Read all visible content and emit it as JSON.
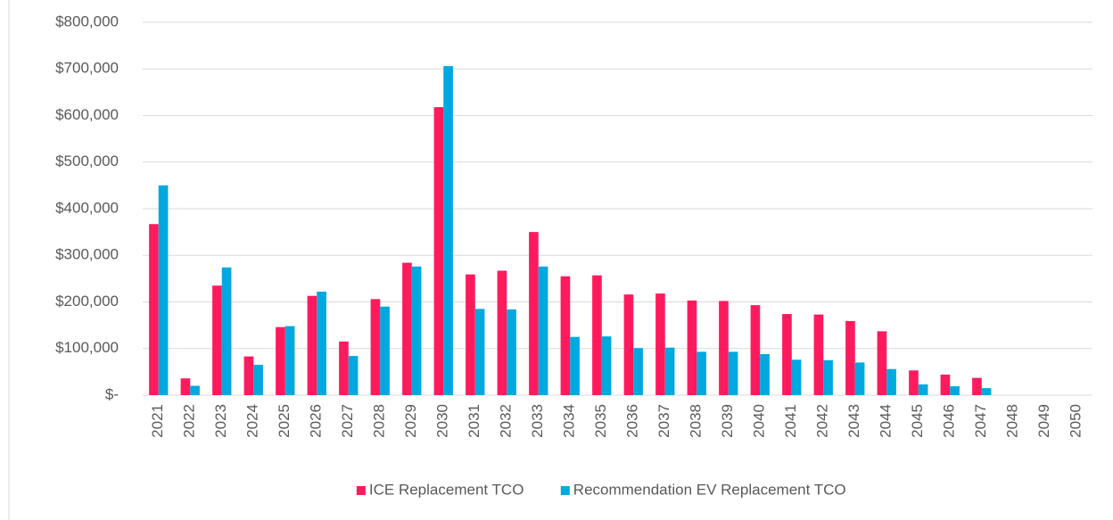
{
  "chart_data": {
    "type": "bar",
    "categories": [
      "2021",
      "2022",
      "2023",
      "2024",
      "2025",
      "2026",
      "2027",
      "2028",
      "2029",
      "2030",
      "2031",
      "2032",
      "2033",
      "2034",
      "2035",
      "2036",
      "2037",
      "2038",
      "2039",
      "2040",
      "2041",
      "2042",
      "2043",
      "2044",
      "2045",
      "2046",
      "2047",
      "2048",
      "2049",
      "2050"
    ],
    "series": [
      {
        "name": "ICE Replacement TCO",
        "color": "#ff1a5e",
        "values": [
          367000,
          36000,
          235000,
          83000,
          146000,
          213000,
          115000,
          206000,
          284000,
          618000,
          259000,
          267000,
          350000,
          255000,
          257000,
          216000,
          218000,
          203000,
          202000,
          193000,
          174000,
          173000,
          159000,
          137000,
          53000,
          44000,
          37000,
          0,
          0,
          0
        ]
      },
      {
        "name": "Recommendation EV Replacement TCO",
        "color": "#00a8e0",
        "values": [
          450000,
          20000,
          274000,
          65000,
          148000,
          222000,
          84000,
          190000,
          276000,
          706000,
          185000,
          184000,
          276000,
          125000,
          126000,
          101000,
          102000,
          93000,
          93000,
          88000,
          76000,
          75000,
          70000,
          56000,
          23000,
          19000,
          15000,
          0,
          0,
          0
        ]
      }
    ],
    "ylim": [
      0,
      800000
    ],
    "yticks": [
      {
        "value": 0,
        "label": "$-"
      },
      {
        "value": 100000,
        "label": "$100,000"
      },
      {
        "value": 200000,
        "label": "$200,000"
      },
      {
        "value": 300000,
        "label": "$300,000"
      },
      {
        "value": 400000,
        "label": "$400,000"
      },
      {
        "value": 500000,
        "label": "$500,000"
      },
      {
        "value": 600000,
        "label": "$600,000"
      },
      {
        "value": 700000,
        "label": "$700,000"
      },
      {
        "value": 800000,
        "label": "$800,000"
      }
    ],
    "grid": true,
    "legend": "bottom"
  }
}
